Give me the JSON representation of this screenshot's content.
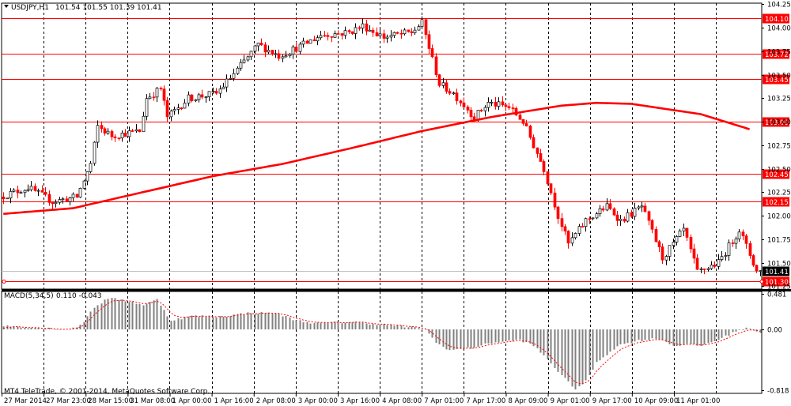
{
  "header": {
    "symbol_info": "USDJPY,H1",
    "ohlc": "101.54 101.55 101.39 101.41"
  },
  "indicator": {
    "label": "MACD(5,34,5)",
    "values": "0.110 -0.043"
  },
  "copyright": "MT4 TeleTrade, © 2001-2014, MetaQuotes Software Corp.",
  "colors": {
    "background": "#ffffff",
    "grid": "#000000",
    "horizontal_lines": "#ff0000",
    "moving_average": "#ff0000",
    "bull_candle": "#000000",
    "bear_candle": "#ff0000",
    "candle_body_bull": "#ffffff",
    "macd_histogram": "#808080",
    "macd_signal": "#ff0000",
    "price_label_bg": "#ff0000",
    "price_label_text": "#ffffff",
    "current_price_bg": "#000000"
  },
  "chart_data": {
    "type": "candlestick",
    "timeframe": "H1",
    "price_axis": {
      "range": [
        101.22,
        104.26
      ],
      "ticks": [
        "104.25",
        "104.00",
        "103.75",
        "103.50",
        "103.25",
        "103.00",
        "102.75",
        "102.50",
        "102.25",
        "102.00",
        "101.75",
        "101.50",
        "101.25"
      ]
    },
    "x_axis": {
      "labels": [
        "27 Mar 2014",
        "27 Mar 23:00",
        "28 Mar 15:00",
        "31 Mar 08:00",
        "1 Apr 00:00",
        "1 Apr 16:00",
        "2 Apr 08:00",
        "3 Apr 00:00",
        "3 Apr 16:00",
        "4 Apr 08:00",
        "7 Apr 01:00",
        "7 Apr 17:00",
        "8 Apr 09:00",
        "9 Apr 01:00",
        "9 Apr 17:00",
        "10 Apr 09:00",
        "11 Apr 01:00"
      ],
      "bars_total": 218
    },
    "horizontal_levels": [
      {
        "label": "104.10",
        "value": 104.1
      },
      {
        "label": "103.72",
        "value": 103.72
      },
      {
        "label": "103.45",
        "value": 103.45
      },
      {
        "label": "103.00",
        "value": 103.0
      },
      {
        "label": "102.45",
        "value": 102.45
      },
      {
        "label": "102.15",
        "value": 102.15
      },
      {
        "label": "101.30",
        "value": 101.3
      }
    ],
    "current_price": {
      "label": "101.41",
      "value": 101.41
    },
    "price_path": [
      [
        0,
        102.2
      ],
      [
        8,
        102.3
      ],
      [
        15,
        102.15
      ],
      [
        22,
        102.2
      ],
      [
        26,
        102.55
      ],
      [
        28,
        102.95
      ],
      [
        32,
        102.85
      ],
      [
        40,
        102.9
      ],
      [
        42,
        103.25
      ],
      [
        46,
        103.35
      ],
      [
        48,
        103.05
      ],
      [
        54,
        103.25
      ],
      [
        62,
        103.3
      ],
      [
        68,
        103.55
      ],
      [
        74,
        103.82
      ],
      [
        80,
        103.7
      ],
      [
        86,
        103.8
      ],
      [
        92,
        103.92
      ],
      [
        100,
        103.95
      ],
      [
        104,
        104.02
      ],
      [
        110,
        103.9
      ],
      [
        118,
        103.95
      ],
      [
        121,
        104.05
      ],
      [
        126,
        103.4
      ],
      [
        130,
        103.3
      ],
      [
        136,
        103.05
      ],
      [
        140,
        103.2
      ],
      [
        146,
        103.15
      ],
      [
        150,
        103.0
      ],
      [
        156,
        102.5
      ],
      [
        160,
        102.0
      ],
      [
        163,
        101.7
      ],
      [
        168,
        101.95
      ],
      [
        174,
        102.1
      ],
      [
        178,
        101.95
      ],
      [
        184,
        102.1
      ],
      [
        190,
        101.55
      ],
      [
        196,
        101.85
      ],
      [
        200,
        101.4
      ],
      [
        206,
        101.5
      ],
      [
        212,
        101.85
      ],
      [
        217,
        101.41
      ]
    ],
    "moving_average": {
      "name": "red moving average",
      "points": [
        [
          0,
          102.02
        ],
        [
          20,
          102.08
        ],
        [
          40,
          102.25
        ],
        [
          60,
          102.42
        ],
        [
          80,
          102.55
        ],
        [
          100,
          102.72
        ],
        [
          120,
          102.9
        ],
        [
          140,
          103.05
        ],
        [
          160,
          103.17
        ],
        [
          170,
          103.2
        ],
        [
          180,
          103.19
        ],
        [
          200,
          103.08
        ],
        [
          214,
          102.92
        ]
      ]
    },
    "macd": {
      "axis_ticks": [
        "0.481",
        "0.00",
        "-0.818"
      ],
      "range": [
        -0.86,
        0.51
      ],
      "histogram_path": [
        [
          0,
          0.05
        ],
        [
          10,
          0.02
        ],
        [
          18,
          0.0
        ],
        [
          22,
          0.05
        ],
        [
          26,
          0.3
        ],
        [
          30,
          0.42
        ],
        [
          36,
          0.38
        ],
        [
          40,
          0.33
        ],
        [
          44,
          0.4
        ],
        [
          48,
          0.12
        ],
        [
          54,
          0.18
        ],
        [
          62,
          0.17
        ],
        [
          70,
          0.22
        ],
        [
          78,
          0.22
        ],
        [
          84,
          0.12
        ],
        [
          90,
          0.08
        ],
        [
          100,
          0.1
        ],
        [
          110,
          0.06
        ],
        [
          118,
          0.02
        ],
        [
          121,
          0.0
        ],
        [
          124,
          -0.18
        ],
        [
          128,
          -0.28
        ],
        [
          134,
          -0.25
        ],
        [
          140,
          -0.18
        ],
        [
          148,
          -0.14
        ],
        [
          152,
          -0.22
        ],
        [
          156,
          -0.4
        ],
        [
          160,
          -0.62
        ],
        [
          164,
          -0.8
        ],
        [
          167,
          -0.7
        ],
        [
          170,
          -0.45
        ],
        [
          176,
          -0.22
        ],
        [
          182,
          -0.15
        ],
        [
          188,
          -0.12
        ],
        [
          192,
          -0.22
        ],
        [
          196,
          -0.2
        ],
        [
          200,
          -0.22
        ],
        [
          206,
          -0.12
        ],
        [
          210,
          -0.02
        ],
        [
          214,
          0.02
        ],
        [
          217,
          -0.04
        ]
      ]
    }
  }
}
